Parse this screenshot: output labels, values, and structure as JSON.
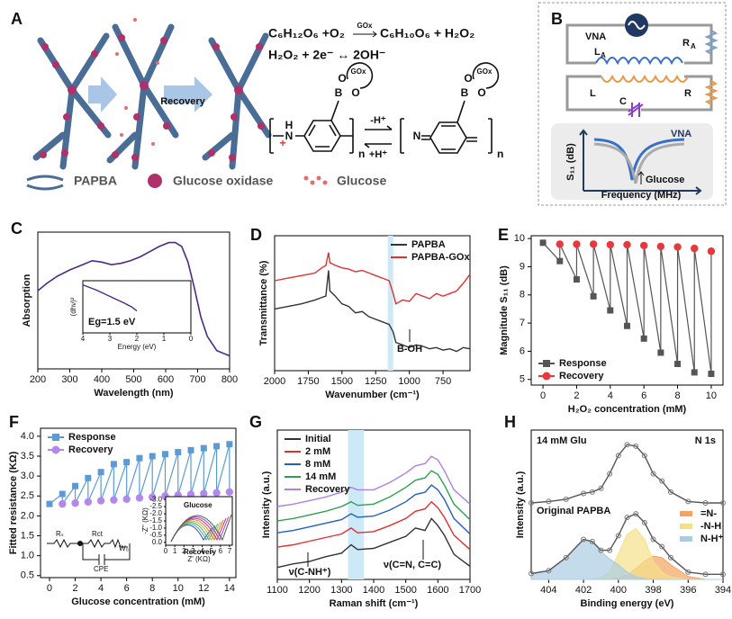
{
  "panel_a": {
    "label": "A",
    "equation_1": {
      "left": "C₆H₁₂O₆ +O₂",
      "catalyst": "GOx",
      "right": "C₆H₁₀O₆ + H₂O₂"
    },
    "equation_2": "H₂O₂ + 2e⁻ ↔ 2OH⁻",
    "arrow_label": "Recovery",
    "legend": [
      "PAPBA",
      "Glucose oxidase",
      "Glucose"
    ],
    "structure": {
      "left": [
        "H",
        "N",
        "+",
        "B",
        "O",
        "O",
        "GOx",
        "n"
      ],
      "right": [
        "N",
        "B",
        "O",
        "O",
        "GOx",
        "n"
      ],
      "arrows": [
        "-H⁺",
        "+H⁺"
      ]
    }
  },
  "panel_b": {
    "label": "B",
    "source": "VNA",
    "reader_resistor": [
      "R",
      "A"
    ],
    "reader_inductor": [
      "L",
      "A"
    ],
    "sensor": [
      "L",
      "C",
      "R"
    ],
    "plot": {
      "ylabel": "S₁₁ (dB)",
      "xlabel": "Frequency (MHz)",
      "source": "VNA",
      "annotation": "Glucose"
    }
  },
  "chart_data": [
    {
      "type": "line",
      "panel": "C",
      "xlabel": "Wavelength (nm)",
      "ylabel": "Absorption",
      "color": "#4b2a8c",
      "x": [
        200,
        230,
        260,
        300,
        340,
        370,
        400,
        430,
        460,
        490,
        520,
        550,
        580,
        610,
        630,
        650,
        670,
        690,
        710,
        730,
        760,
        800
      ],
      "values": [
        0.6,
        0.66,
        0.71,
        0.76,
        0.8,
        0.83,
        0.82,
        0.8,
        0.81,
        0.83,
        0.86,
        0.9,
        0.94,
        0.97,
        0.97,
        0.94,
        0.82,
        0.62,
        0.4,
        0.25,
        0.14,
        0.1
      ],
      "xlim": [
        200,
        800
      ],
      "xticks": [
        200,
        300,
        400,
        500,
        600,
        700,
        800
      ],
      "ylim": [
        0,
        1.05
      ],
      "inset": {
        "xlabel": "Energy (eV)",
        "ylabel": "(dhν)²",
        "annotation": "Eg=1.5 eV",
        "color": "#4b2a8c",
        "x": [
          4,
          3.5,
          3,
          2.5,
          2.2,
          2.0
        ],
        "values": [
          0.92,
          0.82,
          0.7,
          0.58,
          0.5,
          0.42
        ],
        "xlim": [
          4,
          0
        ],
        "xticks": [
          4,
          3,
          2,
          1,
          0
        ],
        "ylim": [
          0,
          1
        ]
      }
    },
    {
      "type": "line",
      "panel": "D",
      "xlabel": "Wavenumber (cm⁻¹)",
      "ylabel": "Transmittance (%)",
      "legend": "upper right",
      "band": [
        1160,
        1120
      ],
      "annotation": "B-OH",
      "x": [
        2000,
        1900,
        1800,
        1700,
        1650,
        1620,
        1600,
        1590,
        1550,
        1500,
        1450,
        1400,
        1350,
        1300,
        1250,
        1200,
        1150,
        1120,
        1100,
        1050,
        1000,
        950,
        900,
        850,
        800,
        750,
        700,
        650,
        600,
        550
      ],
      "series": [
        {
          "name": "PAPBA",
          "color": "#333333",
          "values": [
            0.48,
            0.5,
            0.52,
            0.55,
            0.57,
            0.58,
            0.78,
            0.62,
            0.58,
            0.52,
            0.5,
            0.45,
            0.46,
            0.42,
            0.4,
            0.38,
            0.36,
            0.3,
            0.22,
            0.2,
            0.18,
            0.2,
            0.19,
            0.17,
            0.18,
            0.16,
            0.17,
            0.15,
            0.18,
            0.17
          ]
        },
        {
          "name": "PAPBA-GOx",
          "color": "#e03030",
          "values": [
            0.7,
            0.72,
            0.74,
            0.76,
            0.8,
            0.82,
            0.92,
            0.84,
            0.82,
            0.8,
            0.79,
            0.77,
            0.78,
            0.76,
            0.74,
            0.72,
            0.7,
            0.6,
            0.52,
            0.55,
            0.54,
            0.6,
            0.58,
            0.56,
            0.6,
            0.58,
            0.6,
            0.62,
            0.68,
            0.75
          ]
        }
      ],
      "xlim": [
        2000,
        550
      ],
      "xticks": [
        2000,
        1750,
        1500,
        1250,
        1000,
        750
      ],
      "ylim": [
        0,
        1.05
      ]
    },
    {
      "type": "scatter",
      "panel": "E",
      "xlabel": "H₂O₂ concentration (mM)",
      "ylabel": "Magnitude S₁₁ (dB)",
      "legend": "lower left",
      "connect": "zigzag",
      "series": [
        {
          "name": "Response",
          "color": "#555555",
          "marker": "square",
          "x": [
            0,
            1,
            2,
            3,
            4,
            5,
            6,
            7,
            8,
            9,
            10
          ],
          "values": [
            9.85,
            9.2,
            8.55,
            7.95,
            7.45,
            6.9,
            6.45,
            5.95,
            5.55,
            5.25,
            5.2
          ]
        },
        {
          "name": "Recovery",
          "color": "#e8383d",
          "marker": "circle",
          "x": [
            1,
            2,
            3,
            4,
            5,
            6,
            7,
            8,
            9,
            10
          ],
          "values": [
            9.8,
            9.8,
            9.8,
            9.78,
            9.78,
            9.75,
            9.72,
            9.7,
            9.65,
            9.55
          ]
        }
      ],
      "xlim": [
        -0.7,
        10.7
      ],
      "xticks": [
        0,
        2,
        4,
        6,
        8,
        10
      ],
      "ylim": [
        4.8,
        10.1
      ],
      "yticks": [
        5,
        6,
        7,
        8,
        9,
        10
      ]
    },
    {
      "type": "scatter",
      "panel": "F",
      "xlabel": "Glucose concentration (mM)",
      "ylabel": "Fitted resistance (KΩ)",
      "legend": "upper left",
      "connect": "zigzag",
      "series": [
        {
          "name": "Response",
          "color": "#5b9bd5",
          "marker": "square",
          "x": [
            0,
            1,
            2,
            3,
            4,
            5,
            6,
            7,
            8,
            9,
            10,
            11,
            12,
            13,
            14
          ],
          "values": [
            2.3,
            2.55,
            2.75,
            2.95,
            3.1,
            3.3,
            3.35,
            3.45,
            3.5,
            3.55,
            3.6,
            3.65,
            3.7,
            3.75,
            3.8
          ]
        },
        {
          "name": "Recovery",
          "color": "#b388ee",
          "marker": "circle",
          "x": [
            1,
            2,
            3,
            4,
            5,
            6,
            7,
            8,
            9,
            10,
            11,
            12,
            13,
            14
          ],
          "values": [
            2.3,
            2.32,
            2.35,
            2.38,
            2.4,
            2.42,
            2.45,
            2.47,
            2.5,
            2.52,
            2.54,
            2.56,
            2.58,
            2.6
          ]
        }
      ],
      "xlim": [
        -0.7,
        14.5
      ],
      "xticks": [
        0,
        2,
        4,
        6,
        8,
        10,
        12,
        14
      ],
      "ylim": [
        0.45,
        4.2
      ],
      "yticks": [
        0.5,
        {
          "value": 1,
          "label": "1.0"
        },
        1.5,
        {
          "value": 2,
          "label": "2.0"
        },
        2.5,
        {
          "value": 3,
          "label": "3.0"
        },
        3.5,
        {
          "value": 4,
          "label": "4.0"
        }
      ],
      "circuit": [
        "Rₛ",
        "Rct",
        "W₀",
        "CPE"
      ],
      "inset": {
        "xlabel": "Z' (KΩ)",
        "ylabel": "-Z'' (KΩ)",
        "annotations": [
          "Glucose",
          "Recovery"
        ],
        "xlim": [
          0,
          7.3
        ],
        "xticks": [
          0,
          1,
          2,
          3,
          4,
          5,
          6,
          7
        ],
        "ylim": [
          0.2,
          -3.2
        ],
        "yticks": [
          {
            "value": -3,
            "label": "-3.0"
          },
          -2.5,
          {
            "value": -2,
            "label": "-2.0"
          },
          -1.5,
          {
            "value": -1,
            "label": "-1.0"
          },
          -0.5,
          {
            "value": 0,
            "label": "0.0"
          }
        ]
      }
    },
    {
      "type": "line",
      "panel": "G",
      "xlabel": "Raman shift (cm⁻¹)",
      "ylabel": "Intensity (a.u.)",
      "legend": "upper left",
      "band": [
        1320,
        1370
      ],
      "annotations": [
        "ν(C-NH⁺)",
        "ν(C=N, C=C)"
      ],
      "x": [
        1100,
        1150,
        1200,
        1250,
        1300,
        1330,
        1350,
        1400,
        1450,
        1500,
        1530,
        1560,
        1580,
        1600,
        1620,
        1650,
        1700
      ],
      "series": [
        {
          "name": "Initial",
          "color": "#333333",
          "values": [
            0.05,
            0.08,
            0.1,
            0.14,
            0.17,
            0.24,
            0.2,
            0.21,
            0.26,
            0.31,
            0.38,
            0.36,
            0.46,
            0.4,
            0.32,
            0.16,
            0.06
          ]
        },
        {
          "name": "2 mM",
          "color": "#e03030",
          "values": [
            0.22,
            0.24,
            0.27,
            0.3,
            0.33,
            0.38,
            0.34,
            0.35,
            0.4,
            0.46,
            0.52,
            0.54,
            0.6,
            0.55,
            0.47,
            0.32,
            0.2
          ]
        },
        {
          "name": "8 mM",
          "color": "#2060c0",
          "values": [
            0.34,
            0.36,
            0.39,
            0.42,
            0.45,
            0.5,
            0.47,
            0.48,
            0.53,
            0.6,
            0.66,
            0.68,
            0.74,
            0.7,
            0.62,
            0.46,
            0.33
          ]
        },
        {
          "name": "14 mM",
          "color": "#30a050",
          "values": [
            0.44,
            0.46,
            0.49,
            0.52,
            0.56,
            0.6,
            0.57,
            0.58,
            0.64,
            0.72,
            0.78,
            0.8,
            0.86,
            0.83,
            0.74,
            0.58,
            0.45
          ]
        },
        {
          "name": "Recovery",
          "color": "#b080e0",
          "values": [
            0.56,
            0.58,
            0.61,
            0.64,
            0.68,
            0.72,
            0.7,
            0.7,
            0.76,
            0.84,
            0.9,
            0.92,
            0.98,
            0.95,
            0.86,
            0.7,
            0.58
          ]
        }
      ],
      "xlim": [
        1100,
        1700
      ],
      "xticks": [
        1100,
        1200,
        1300,
        1400,
        1500,
        1600,
        1700
      ],
      "ylim": [
        -0.05,
        1.2
      ]
    },
    {
      "type": "xps",
      "panel": "H",
      "xlabel": "Binding energy (eV)",
      "ylabel": "Intensity (a.u.)",
      "legend": "center right",
      "annotation": "N 1s",
      "x": [
        405,
        404,
        403,
        402,
        401.5,
        401,
        400.5,
        400,
        399.5,
        399,
        398.5,
        398,
        397.5,
        397,
        396,
        395,
        394
      ],
      "spectra": [
        {
          "name": "14 mM Glu",
          "color": "#555555",
          "values": [
            1.05,
            1.07,
            1.1,
            1.18,
            1.2,
            1.25,
            1.45,
            1.7,
            1.85,
            1.83,
            1.7,
            1.45,
            1.35,
            1.2,
            1.07,
            1.05,
            1.05
          ]
        },
        {
          "name": "Original PAPBA",
          "color": "#555555",
          "values": [
            0.08,
            0.12,
            0.3,
            0.55,
            0.52,
            0.4,
            0.4,
            0.6,
            0.85,
            0.9,
            0.78,
            0.55,
            0.45,
            0.3,
            0.1,
            0.07,
            0.07
          ]
        }
      ],
      "series": [
        {
          "name": "=N-",
          "color": "#f4a460",
          "values": [
            0,
            0,
            0,
            0,
            0,
            0,
            0,
            0.02,
            0.06,
            0.15,
            0.25,
            0.32,
            0.3,
            0.2,
            0.04,
            0,
            0
          ]
        },
        {
          "name": "-N-H",
          "color": "#f5e08a",
          "values": [
            0,
            0,
            0,
            0,
            0,
            0.02,
            0.1,
            0.35,
            0.62,
            0.7,
            0.55,
            0.25,
            0.1,
            0.03,
            0,
            0,
            0
          ]
        },
        {
          "name": "N-H⁺",
          "color": "#a9cce3",
          "values": [
            0.08,
            0.12,
            0.3,
            0.55,
            0.52,
            0.38,
            0.28,
            0.2,
            0.1,
            0.04,
            0.01,
            0,
            0,
            0,
            0,
            0,
            0
          ]
        }
      ],
      "xlim": [
        405,
        394
      ],
      "xticks": [
        404,
        402,
        400,
        398,
        396,
        394
      ],
      "ylim": [
        0,
        2.05
      ]
    }
  ]
}
